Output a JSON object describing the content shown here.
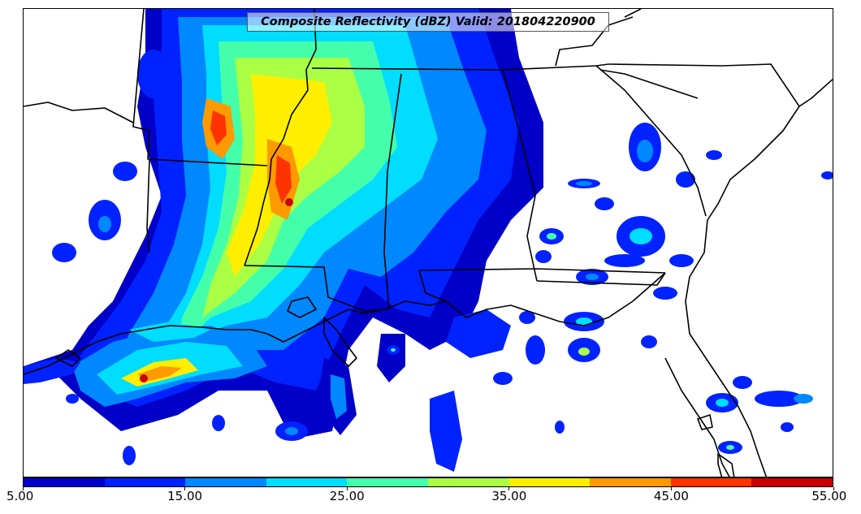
{
  "title": "Composite Reflectivity (dBZ) Valid: 201804220900",
  "colorbar": {
    "colors": [
      "#0000c8",
      "#0022ff",
      "#0088ff",
      "#00ddff",
      "#44ffaa",
      "#aaff44",
      "#ffee00",
      "#ff9900",
      "#ff3300",
      "#c80000"
    ],
    "tick_labels": [
      "5.00",
      "15.00",
      "25.00",
      "35.00",
      "45.00",
      "55.00"
    ]
  },
  "map_colors": {
    "coast": "#000000",
    "state_lines": "#000000",
    "background": "#ffffff"
  }
}
